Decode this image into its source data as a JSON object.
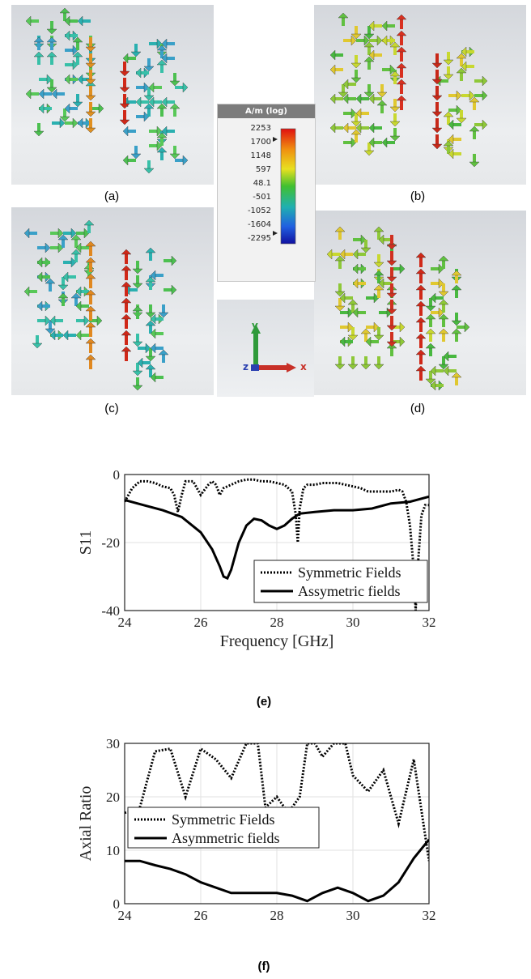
{
  "figure": {
    "panels": [
      {
        "caption": "(a)"
      },
      {
        "caption": "(b)"
      },
      {
        "caption": "(c)"
      },
      {
        "caption": "(d)"
      }
    ],
    "colorbar": {
      "title": "A/m (log)",
      "ticks": [
        "2253",
        "1700",
        "1148",
        "597",
        "48.1",
        "-501",
        "-1052",
        "-1604",
        "-2295"
      ]
    },
    "axes_triad": {
      "y": "y",
      "z": "z",
      "x": "x"
    },
    "caption_e": "(e)",
    "caption_f": "(f)"
  },
  "chart_data": [
    {
      "type": "line",
      "title": "",
      "xlabel": "Frequency [GHz]",
      "ylabel": "S11",
      "xlim": [
        24,
        32
      ],
      "ylim": [
        -40,
        0
      ],
      "xticks": [
        24,
        26,
        28,
        30,
        32
      ],
      "yticks": [
        0,
        -20,
        -40
      ],
      "grid": true,
      "legend": "bottom-right",
      "series": [
        {
          "name": "Symmetric Fields",
          "style": "dotted",
          "x": [
            24,
            24.2,
            24.4,
            24.6,
            24.8,
            25.0,
            25.2,
            25.3,
            25.4,
            25.5,
            25.6,
            25.8,
            26.0,
            26.2,
            26.3,
            26.4,
            26.5,
            26.6,
            26.8,
            27.0,
            27.2,
            27.4,
            27.6,
            27.8,
            28.0,
            28.2,
            28.4,
            28.5,
            28.55,
            28.6,
            28.7,
            28.8,
            29.0,
            29.2,
            29.4,
            29.6,
            29.8,
            30.0,
            30.2,
            30.4,
            30.6,
            30.8,
            31.0,
            31.2,
            31.3,
            31.4,
            31.5,
            31.6,
            31.65,
            31.7,
            31.8,
            31.9,
            32.0
          ],
          "y": [
            -8,
            -4,
            -2,
            -2,
            -2.5,
            -3.5,
            -4,
            -6,
            -11,
            -6,
            -2,
            -2,
            -6,
            -3,
            -2,
            -3,
            -6,
            -4,
            -3,
            -2,
            -1.5,
            -1.5,
            -2,
            -2,
            -2.5,
            -3,
            -5,
            -12,
            -20,
            -10,
            -4,
            -3,
            -3,
            -2.5,
            -2.5,
            -2.5,
            -3,
            -3.5,
            -4,
            -5,
            -5,
            -5,
            -5,
            -4.5,
            -5,
            -8,
            -15,
            -28,
            -40,
            -28,
            -12,
            -9,
            -9
          ]
        },
        {
          "name": "Assymetric fields",
          "style": "solid",
          "x": [
            24,
            24.5,
            25.0,
            25.5,
            26.0,
            26.3,
            26.5,
            26.6,
            26.7,
            26.8,
            27.0,
            27.2,
            27.4,
            27.6,
            27.8,
            28.0,
            28.2,
            28.4,
            28.6,
            29.0,
            29.5,
            30.0,
            30.5,
            31.0,
            31.5,
            32.0
          ],
          "y": [
            -7.5,
            -9,
            -10.5,
            -12.5,
            -17,
            -22,
            -27,
            -30,
            -30.5,
            -28,
            -20,
            -15,
            -13,
            -13.5,
            -15,
            -16,
            -15,
            -13,
            -11.5,
            -11,
            -10.5,
            -10.5,
            -10,
            -8.5,
            -8,
            -6.5
          ]
        }
      ]
    },
    {
      "type": "line",
      "title": "",
      "xlabel": "Frequency [GHz]",
      "ylabel": "Axial Ratio",
      "xlim": [
        24,
        32
      ],
      "ylim": [
        0,
        30
      ],
      "xticks": [
        24,
        26,
        28,
        30,
        32
      ],
      "yticks": [
        0,
        10,
        20,
        30
      ],
      "grid": true,
      "legend": "center-left",
      "series": [
        {
          "name": "Symmetric Fields",
          "style": "dotted",
          "x": [
            24,
            24.4,
            24.8,
            25.2,
            25.6,
            26.0,
            26.4,
            26.8,
            27.2,
            27.5,
            27.7,
            28.0,
            28.3,
            28.6,
            28.8,
            29.0,
            29.2,
            29.5,
            29.8,
            30.0,
            30.4,
            30.8,
            31.2,
            31.6,
            32.0
          ],
          "y": [
            17,
            18,
            28.5,
            29,
            20,
            29,
            27,
            23.5,
            30,
            30,
            18,
            20,
            17,
            20,
            30,
            30,
            27.5,
            30,
            30,
            24,
            21,
            25,
            15,
            27,
            8
          ]
        },
        {
          "name": "Asymmetric fields",
          "style": "solid",
          "x": [
            24,
            24.4,
            24.8,
            25.2,
            25.6,
            26.0,
            26.4,
            26.8,
            27.2,
            27.6,
            28.0,
            28.4,
            28.8,
            29.2,
            29.6,
            30.0,
            30.4,
            30.8,
            31.2,
            31.6,
            32.0
          ],
          "y": [
            8,
            8,
            7.2,
            6.5,
            5.5,
            4,
            3,
            2,
            2,
            2,
            2,
            1.5,
            0.5,
            2,
            3,
            2,
            0.5,
            1.5,
            4,
            8.5,
            12
          ]
        }
      ]
    }
  ]
}
